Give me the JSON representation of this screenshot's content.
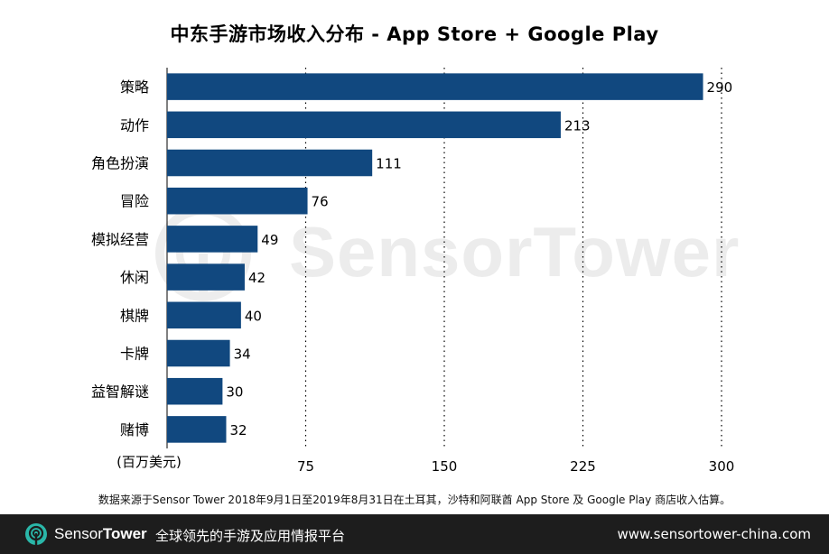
{
  "chart_data": {
    "type": "bar",
    "orientation": "horizontal",
    "title": "中东手游市场收入分布 - App Store + Google Play",
    "unit_label": "(百万美元)",
    "categories": [
      "策略",
      "动作",
      "角色扮演",
      "冒险",
      "模拟经营",
      "休闲",
      "棋牌",
      "卡牌",
      "益智解谜",
      "赌博"
    ],
    "values": [
      290,
      213,
      111,
      76,
      49,
      42,
      40,
      34,
      30,
      32
    ],
    "xlim": [
      0,
      300
    ],
    "xticks": [
      75,
      150,
      225,
      300
    ],
    "grid": "vertical dotted",
    "bar_color": "#11487f"
  },
  "watermark": {
    "text": "SensorTower"
  },
  "source_note": "数据来源于Sensor Tower 2018年9月1日至2019年8月31日在土耳其，沙特和阿联酋 App Store 及 Google Play 商店收入估算。",
  "footer": {
    "brand_light": "Sensor",
    "brand_bold": "Tower",
    "tagline": "全球领先的手游及应用情报平台",
    "url": "www.sensortower-china.com",
    "icon": "sensortower-logo-icon",
    "accent": "#2ab7a9"
  }
}
